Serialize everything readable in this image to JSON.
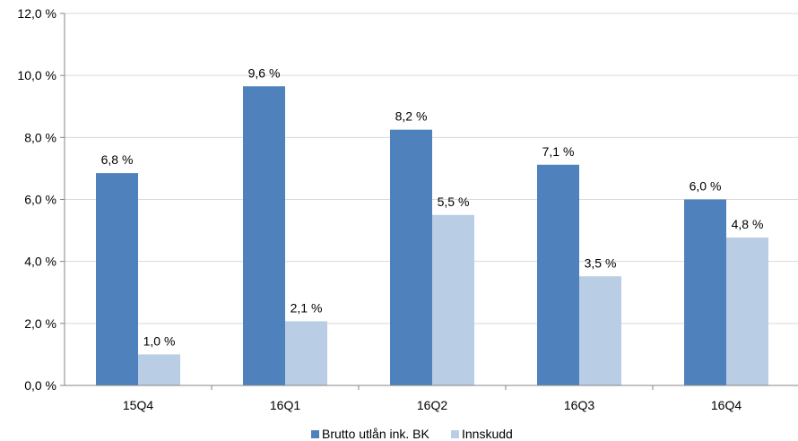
{
  "chart_data": {
    "type": "bar",
    "categories": [
      "15Q4",
      "16Q1",
      "16Q2",
      "16Q3",
      "16Q4"
    ],
    "series": [
      {
        "name": "Brutto utlån ink. BK",
        "color": "#4F81BD",
        "values": [
          6.85,
          9.65,
          8.25,
          7.12,
          6.0
        ],
        "labels": [
          "6,8 %",
          "9,6 %",
          "8,2 %",
          "7,1 %",
          "6,0 %"
        ]
      },
      {
        "name": "Innskudd",
        "color": "#B9CDE5",
        "values": [
          1.0,
          2.07,
          5.5,
          3.52,
          4.77
        ],
        "labels": [
          "1,0 %",
          "2,1 %",
          "5,5 %",
          "3,5 %",
          "4,8 %"
        ]
      }
    ],
    "ylim": [
      0,
      12
    ],
    "yticks": [
      0,
      2,
      4,
      6,
      8,
      10,
      12
    ],
    "ytick_labels": [
      "0,0 %",
      "2,0 %",
      "4,0 %",
      "6,0 %",
      "8,0 %",
      "10,0 %",
      "12,0 %"
    ],
    "grid": true,
    "legend": "bottom-center",
    "title": "",
    "xlabel": "",
    "ylabel": ""
  }
}
